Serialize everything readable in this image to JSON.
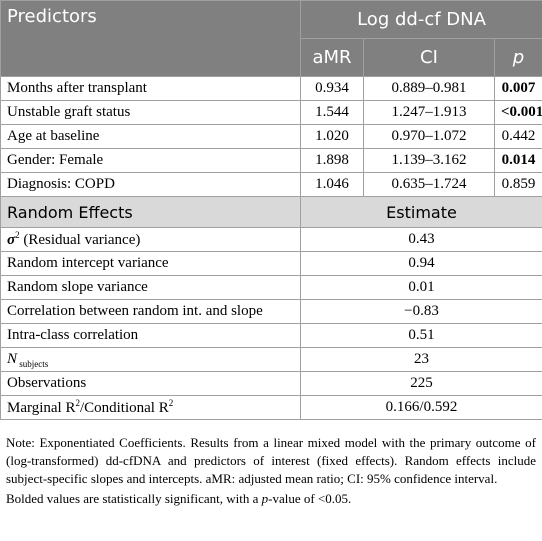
{
  "header": {
    "predictors": "Predictors",
    "group": "Log dd-cf DNA",
    "columns": [
      "aMR",
      "CI",
      "p"
    ]
  },
  "fixed_effects": [
    {
      "predictor": "Months after transplant",
      "amr": "0.934",
      "ci": "0.889–0.981",
      "p": "0.007",
      "p_bold": true
    },
    {
      "predictor": "Unstable graft status",
      "amr": "1.544",
      "ci": "1.247–1.913",
      "p": "<0.001",
      "p_bold": true
    },
    {
      "predictor": "Age at baseline",
      "amr": "1.020",
      "ci": "0.970–1.072",
      "p": "0.442",
      "p_bold": false
    },
    {
      "predictor": "Gender: Female",
      "amr": "1.898",
      "ci": "1.139–3.162",
      "p": "0.014",
      "p_bold": true
    },
    {
      "predictor": "Diagnosis: COPD",
      "amr": "1.046",
      "ci": "0.635–1.724",
      "p": "0.859",
      "p_bold": false
    }
  ],
  "random_effects": {
    "header": [
      "Random Effects",
      "Estimate"
    ],
    "rows": [
      {
        "label": [
          {
            "text": "σ",
            "style": "bi"
          },
          {
            "text": "2",
            "style": "sup"
          },
          {
            "text": " (Residual variance)",
            "style": ""
          }
        ],
        "estimate": "0.43"
      },
      {
        "label": [
          {
            "text": "Random intercept variance",
            "style": ""
          }
        ],
        "estimate": "0.94"
      },
      {
        "label": [
          {
            "text": "Random slope variance",
            "style": ""
          }
        ],
        "estimate": "0.01"
      },
      {
        "label": [
          {
            "text": "Correlation between random int. and slope",
            "style": ""
          }
        ],
        "estimate": "−0.83"
      },
      {
        "label": [
          {
            "text": "Intra-class correlation",
            "style": ""
          }
        ],
        "estimate": "0.51"
      },
      {
        "label": [
          {
            "text": "N",
            "style": "i"
          },
          {
            "text": " subjects",
            "style": "sub"
          }
        ],
        "estimate": "23"
      },
      {
        "label": [
          {
            "text": "Observations",
            "style": ""
          }
        ],
        "estimate": "225"
      },
      {
        "label": [
          {
            "text": "Marginal R",
            "style": ""
          },
          {
            "text": "2",
            "style": "sup"
          },
          {
            "text": "/Conditional R",
            "style": ""
          },
          {
            "text": "2",
            "style": "sup"
          }
        ],
        "estimate": "0.166/0.592"
      }
    ]
  },
  "notes": [
    [
      {
        "text": "Note: Exponentiated Coefficients. Results from a linear mixed model with the primary outcome of (log-transformed) dd-cfDNA and predictors of interest (fixed effects). Random effects include subject-specific slopes and intercepts. aMR: adjusted mean ratio; CI: 95% confidence interval.",
        "style": ""
      }
    ],
    [
      {
        "text": "Bolded values are statistically significant, with a ",
        "style": ""
      },
      {
        "text": "p",
        "style": "i"
      },
      {
        "text": "-value of <0.05.",
        "style": ""
      }
    ]
  ]
}
